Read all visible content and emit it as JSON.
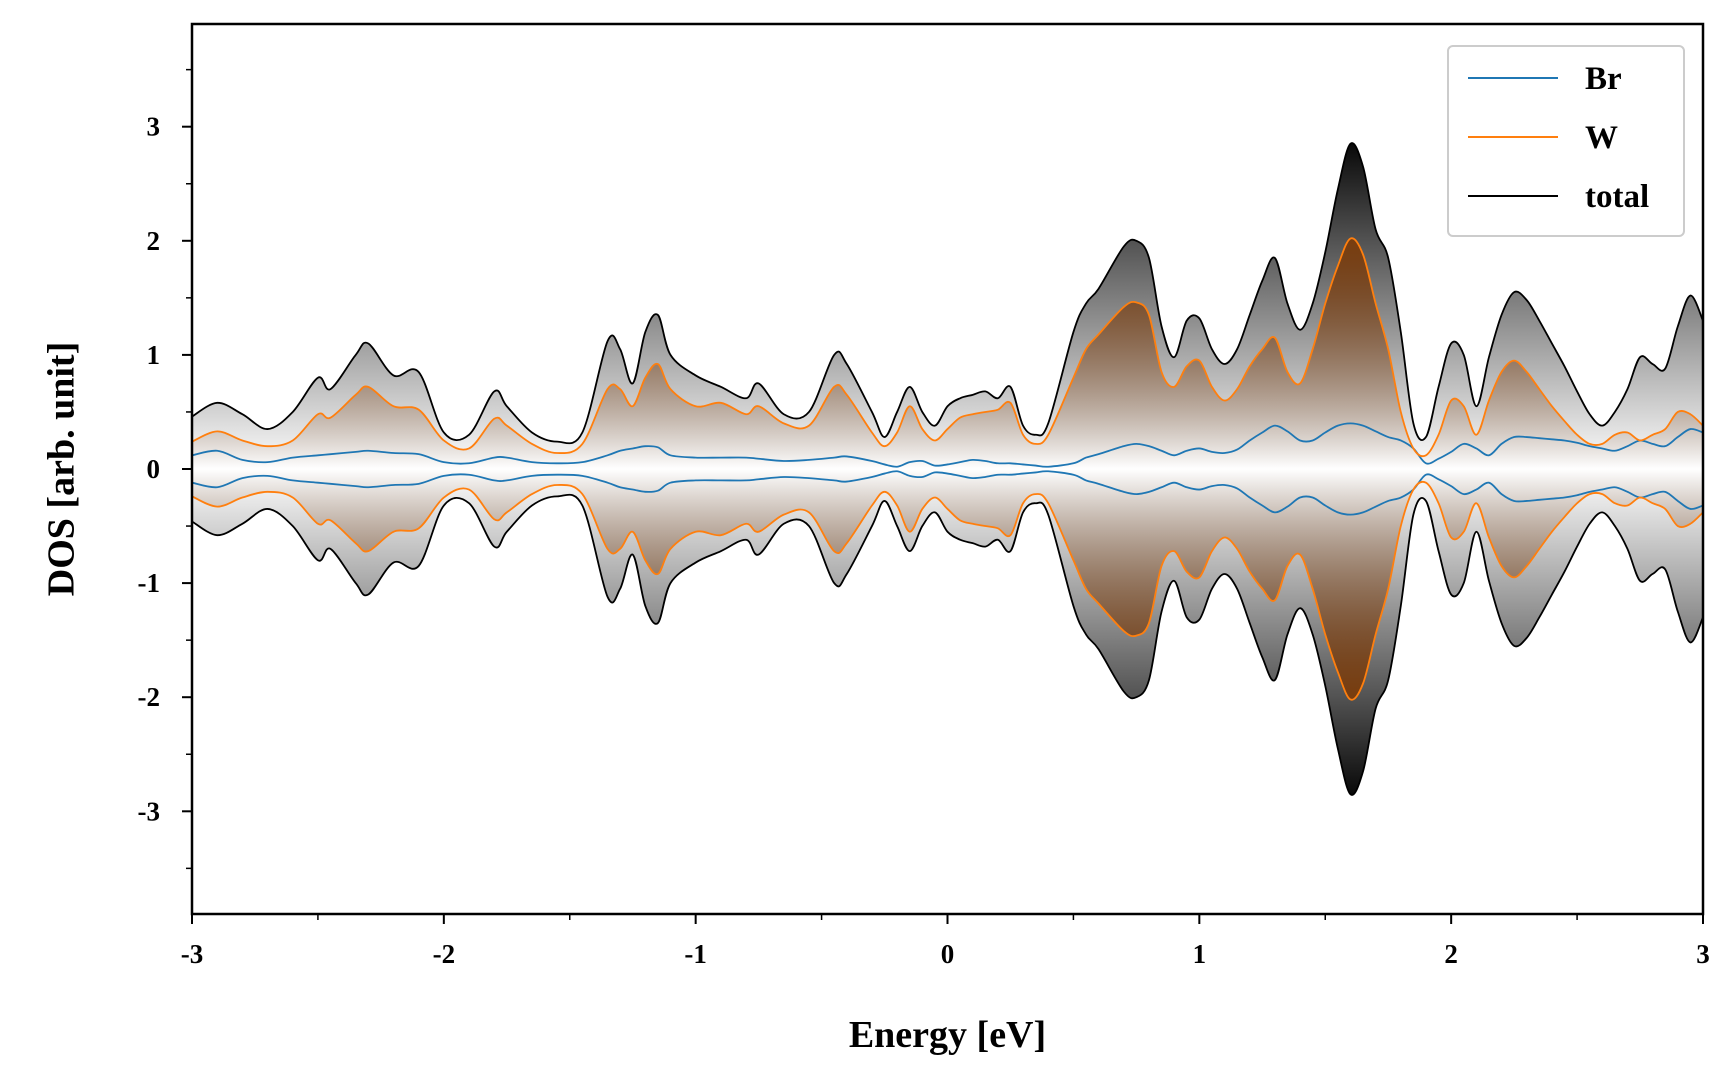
{
  "chart_data": {
    "type": "area",
    "xlabel": "Energy [eV]",
    "ylabel": "DOS [arb. unit]",
    "xlim": [
      -3,
      3
    ],
    "ylim": [
      -3.9,
      3.9
    ],
    "xticks": [
      -3,
      -2,
      -1,
      0,
      1,
      2,
      3
    ],
    "xtick_labels": [
      "-3",
      "-2",
      "-1",
      "0",
      "1",
      "2",
      "3"
    ],
    "yticks": [
      -3,
      -2,
      -1,
      0,
      1,
      2,
      3
    ],
    "ytick_labels": [
      "-3",
      "-2",
      "-1",
      "0",
      "1",
      "2",
      "3"
    ],
    "grid": false,
    "legend_position": "top-right",
    "mirrored_spin": true,
    "x": [
      -3.0,
      -2.9,
      -2.8,
      -2.7,
      -2.6,
      -2.5,
      -2.45,
      -2.35,
      -2.3,
      -2.2,
      -2.1,
      -2.0,
      -1.9,
      -1.8,
      -1.75,
      -1.65,
      -1.55,
      -1.45,
      -1.35,
      -1.3,
      -1.25,
      -1.2,
      -1.15,
      -1.1,
      -1.0,
      -0.9,
      -0.8,
      -0.75,
      -0.65,
      -0.55,
      -0.45,
      -0.4,
      -0.3,
      -0.25,
      -0.2,
      -0.15,
      -0.1,
      -0.05,
      0.0,
      0.05,
      0.1,
      0.15,
      0.2,
      0.25,
      0.3,
      0.35,
      0.4,
      0.5,
      0.55,
      0.6,
      0.7,
      0.75,
      0.8,
      0.85,
      0.9,
      0.95,
      1.0,
      1.05,
      1.1,
      1.15,
      1.2,
      1.25,
      1.3,
      1.35,
      1.4,
      1.45,
      1.5,
      1.55,
      1.6,
      1.65,
      1.7,
      1.75,
      1.8,
      1.85,
      1.9,
      1.95,
      2.0,
      2.05,
      2.1,
      2.15,
      2.2,
      2.25,
      2.3,
      2.35,
      2.4,
      2.45,
      2.5,
      2.55,
      2.6,
      2.65,
      2.7,
      2.75,
      2.8,
      2.85,
      2.9,
      2.95,
      3.0
    ],
    "series": [
      {
        "name": "Br",
        "color": "#1f77b4",
        "fill": "none",
        "values": [
          0.12,
          0.16,
          0.08,
          0.06,
          0.1,
          0.12,
          0.13,
          0.15,
          0.16,
          0.14,
          0.13,
          0.06,
          0.05,
          0.1,
          0.1,
          0.06,
          0.05,
          0.06,
          0.12,
          0.16,
          0.18,
          0.2,
          0.19,
          0.12,
          0.1,
          0.1,
          0.1,
          0.09,
          0.07,
          0.08,
          0.1,
          0.11,
          0.07,
          0.04,
          0.02,
          0.06,
          0.07,
          0.03,
          0.04,
          0.06,
          0.08,
          0.07,
          0.05,
          0.05,
          0.04,
          0.03,
          0.02,
          0.05,
          0.1,
          0.13,
          0.2,
          0.22,
          0.2,
          0.16,
          0.12,
          0.16,
          0.18,
          0.15,
          0.14,
          0.17,
          0.25,
          0.32,
          0.38,
          0.33,
          0.25,
          0.25,
          0.32,
          0.38,
          0.4,
          0.38,
          0.33,
          0.28,
          0.25,
          0.18,
          0.05,
          0.09,
          0.15,
          0.22,
          0.18,
          0.12,
          0.22,
          0.28,
          0.28,
          0.27,
          0.26,
          0.25,
          0.23,
          0.2,
          0.18,
          0.16,
          0.2,
          0.25,
          0.22,
          0.2,
          0.28,
          0.35,
          0.32
        ]
      },
      {
        "name": "W",
        "color": "#ff7f0e",
        "fill": "#7a3c0c",
        "values": [
          0.24,
          0.33,
          0.25,
          0.2,
          0.25,
          0.48,
          0.45,
          0.65,
          0.72,
          0.55,
          0.52,
          0.25,
          0.18,
          0.44,
          0.38,
          0.22,
          0.14,
          0.22,
          0.7,
          0.7,
          0.55,
          0.8,
          0.92,
          0.7,
          0.55,
          0.58,
          0.48,
          0.55,
          0.4,
          0.38,
          0.72,
          0.65,
          0.32,
          0.2,
          0.32,
          0.55,
          0.35,
          0.25,
          0.35,
          0.45,
          0.48,
          0.5,
          0.52,
          0.58,
          0.3,
          0.22,
          0.3,
          0.8,
          1.05,
          1.18,
          1.42,
          1.46,
          1.35,
          0.85,
          0.72,
          0.9,
          0.95,
          0.72,
          0.6,
          0.7,
          0.9,
          1.05,
          1.15,
          0.85,
          0.75,
          1.05,
          1.45,
          1.78,
          2.02,
          1.88,
          1.45,
          1.05,
          0.5,
          0.18,
          0.12,
          0.3,
          0.6,
          0.55,
          0.3,
          0.6,
          0.85,
          0.95,
          0.85,
          0.7,
          0.55,
          0.42,
          0.3,
          0.22,
          0.22,
          0.3,
          0.32,
          0.25,
          0.3,
          0.35,
          0.5,
          0.48,
          0.38
        ]
      },
      {
        "name": "total",
        "color": "#000000",
        "fill": "#000000",
        "values": [
          0.46,
          0.58,
          0.48,
          0.35,
          0.5,
          0.8,
          0.7,
          1.0,
          1.1,
          0.82,
          0.85,
          0.32,
          0.3,
          0.68,
          0.55,
          0.32,
          0.24,
          0.32,
          1.12,
          1.05,
          0.75,
          1.2,
          1.35,
          1.0,
          0.82,
          0.72,
          0.62,
          0.75,
          0.48,
          0.5,
          1.0,
          0.92,
          0.5,
          0.28,
          0.5,
          0.72,
          0.5,
          0.38,
          0.55,
          0.62,
          0.65,
          0.68,
          0.62,
          0.72,
          0.38,
          0.3,
          0.4,
          1.2,
          1.45,
          1.58,
          1.95,
          2.0,
          1.85,
          1.25,
          0.98,
          1.3,
          1.32,
          1.05,
          0.92,
          1.05,
          1.35,
          1.65,
          1.85,
          1.45,
          1.22,
          1.45,
          1.9,
          2.45,
          2.85,
          2.65,
          2.1,
          1.85,
          1.2,
          0.4,
          0.28,
          0.72,
          1.1,
          1.0,
          0.55,
          0.98,
          1.35,
          1.55,
          1.48,
          1.3,
          1.1,
          0.9,
          0.68,
          0.48,
          0.38,
          0.5,
          0.7,
          0.98,
          0.92,
          0.88,
          1.25,
          1.52,
          1.3
        ]
      }
    ]
  }
}
